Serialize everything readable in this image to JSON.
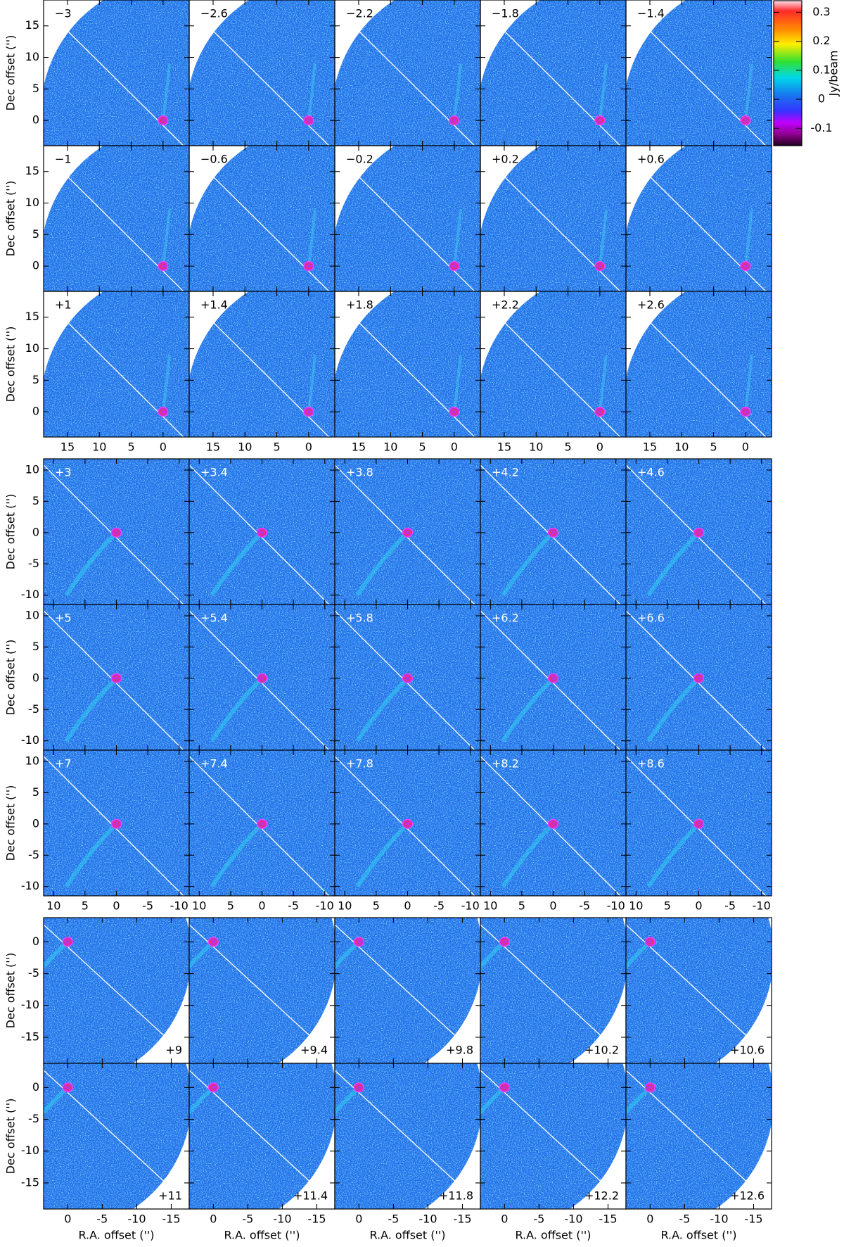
{
  "x_label": "R.A. offset ('')",
  "y_label": "Dec offset ('')",
  "colorbar": {
    "label": "Jy/beam",
    "zlim": [
      -0.16,
      0.34
    ],
    "ticks": [
      -0.1,
      0,
      0.1,
      0.2,
      0.3
    ]
  },
  "groups": [
    {
      "xlim": [
        18.75,
        -4.1
      ],
      "ylim": [
        -4,
        19.1
      ],
      "xticks": [
        15,
        10,
        5,
        0
      ],
      "yticks": [
        0,
        5,
        10,
        15
      ],
      "channels": [
        [
          "−3",
          "−2.6",
          "−2.2",
          "−1.8",
          "−1.4"
        ],
        [
          "−1",
          "−0.6",
          "−0.2",
          "+0.2",
          "+0.6"
        ],
        [
          "+1",
          "+1.4",
          "+1.8",
          "+2.2",
          "+2.6"
        ]
      ]
    },
    {
      "xlim": [
        11.6,
        -11.6
      ],
      "ylim": [
        -11.5,
        11.8
      ],
      "xticks": [
        10,
        5,
        0,
        -5,
        -10
      ],
      "yticks": [
        -10,
        -5,
        0,
        5,
        10
      ],
      "channels": [
        [
          "+3",
          "+3.4",
          "+3.8",
          "+4.2",
          "+4.6"
        ],
        [
          "+5",
          "+5.4",
          "+5.8",
          "+6.2",
          "+6.6"
        ],
        [
          "+7",
          "+7.4",
          "+7.8",
          "+8.2",
          "+8.6"
        ]
      ]
    },
    {
      "xlim": [
        3.5,
        -17.6
      ],
      "ylim": [
        -19.1,
        3.8
      ],
      "xticks": [
        0,
        -5,
        -10,
        -15
      ],
      "yticks": [
        -15,
        -10,
        -5,
        0
      ],
      "channels": [
        [
          "+9",
          "+9.4",
          "+9.8",
          "+10.2",
          "+10.6"
        ],
        [
          "+11",
          "+11.4",
          "+11.8",
          "+12.2",
          "+12.6"
        ]
      ]
    }
  ]
}
